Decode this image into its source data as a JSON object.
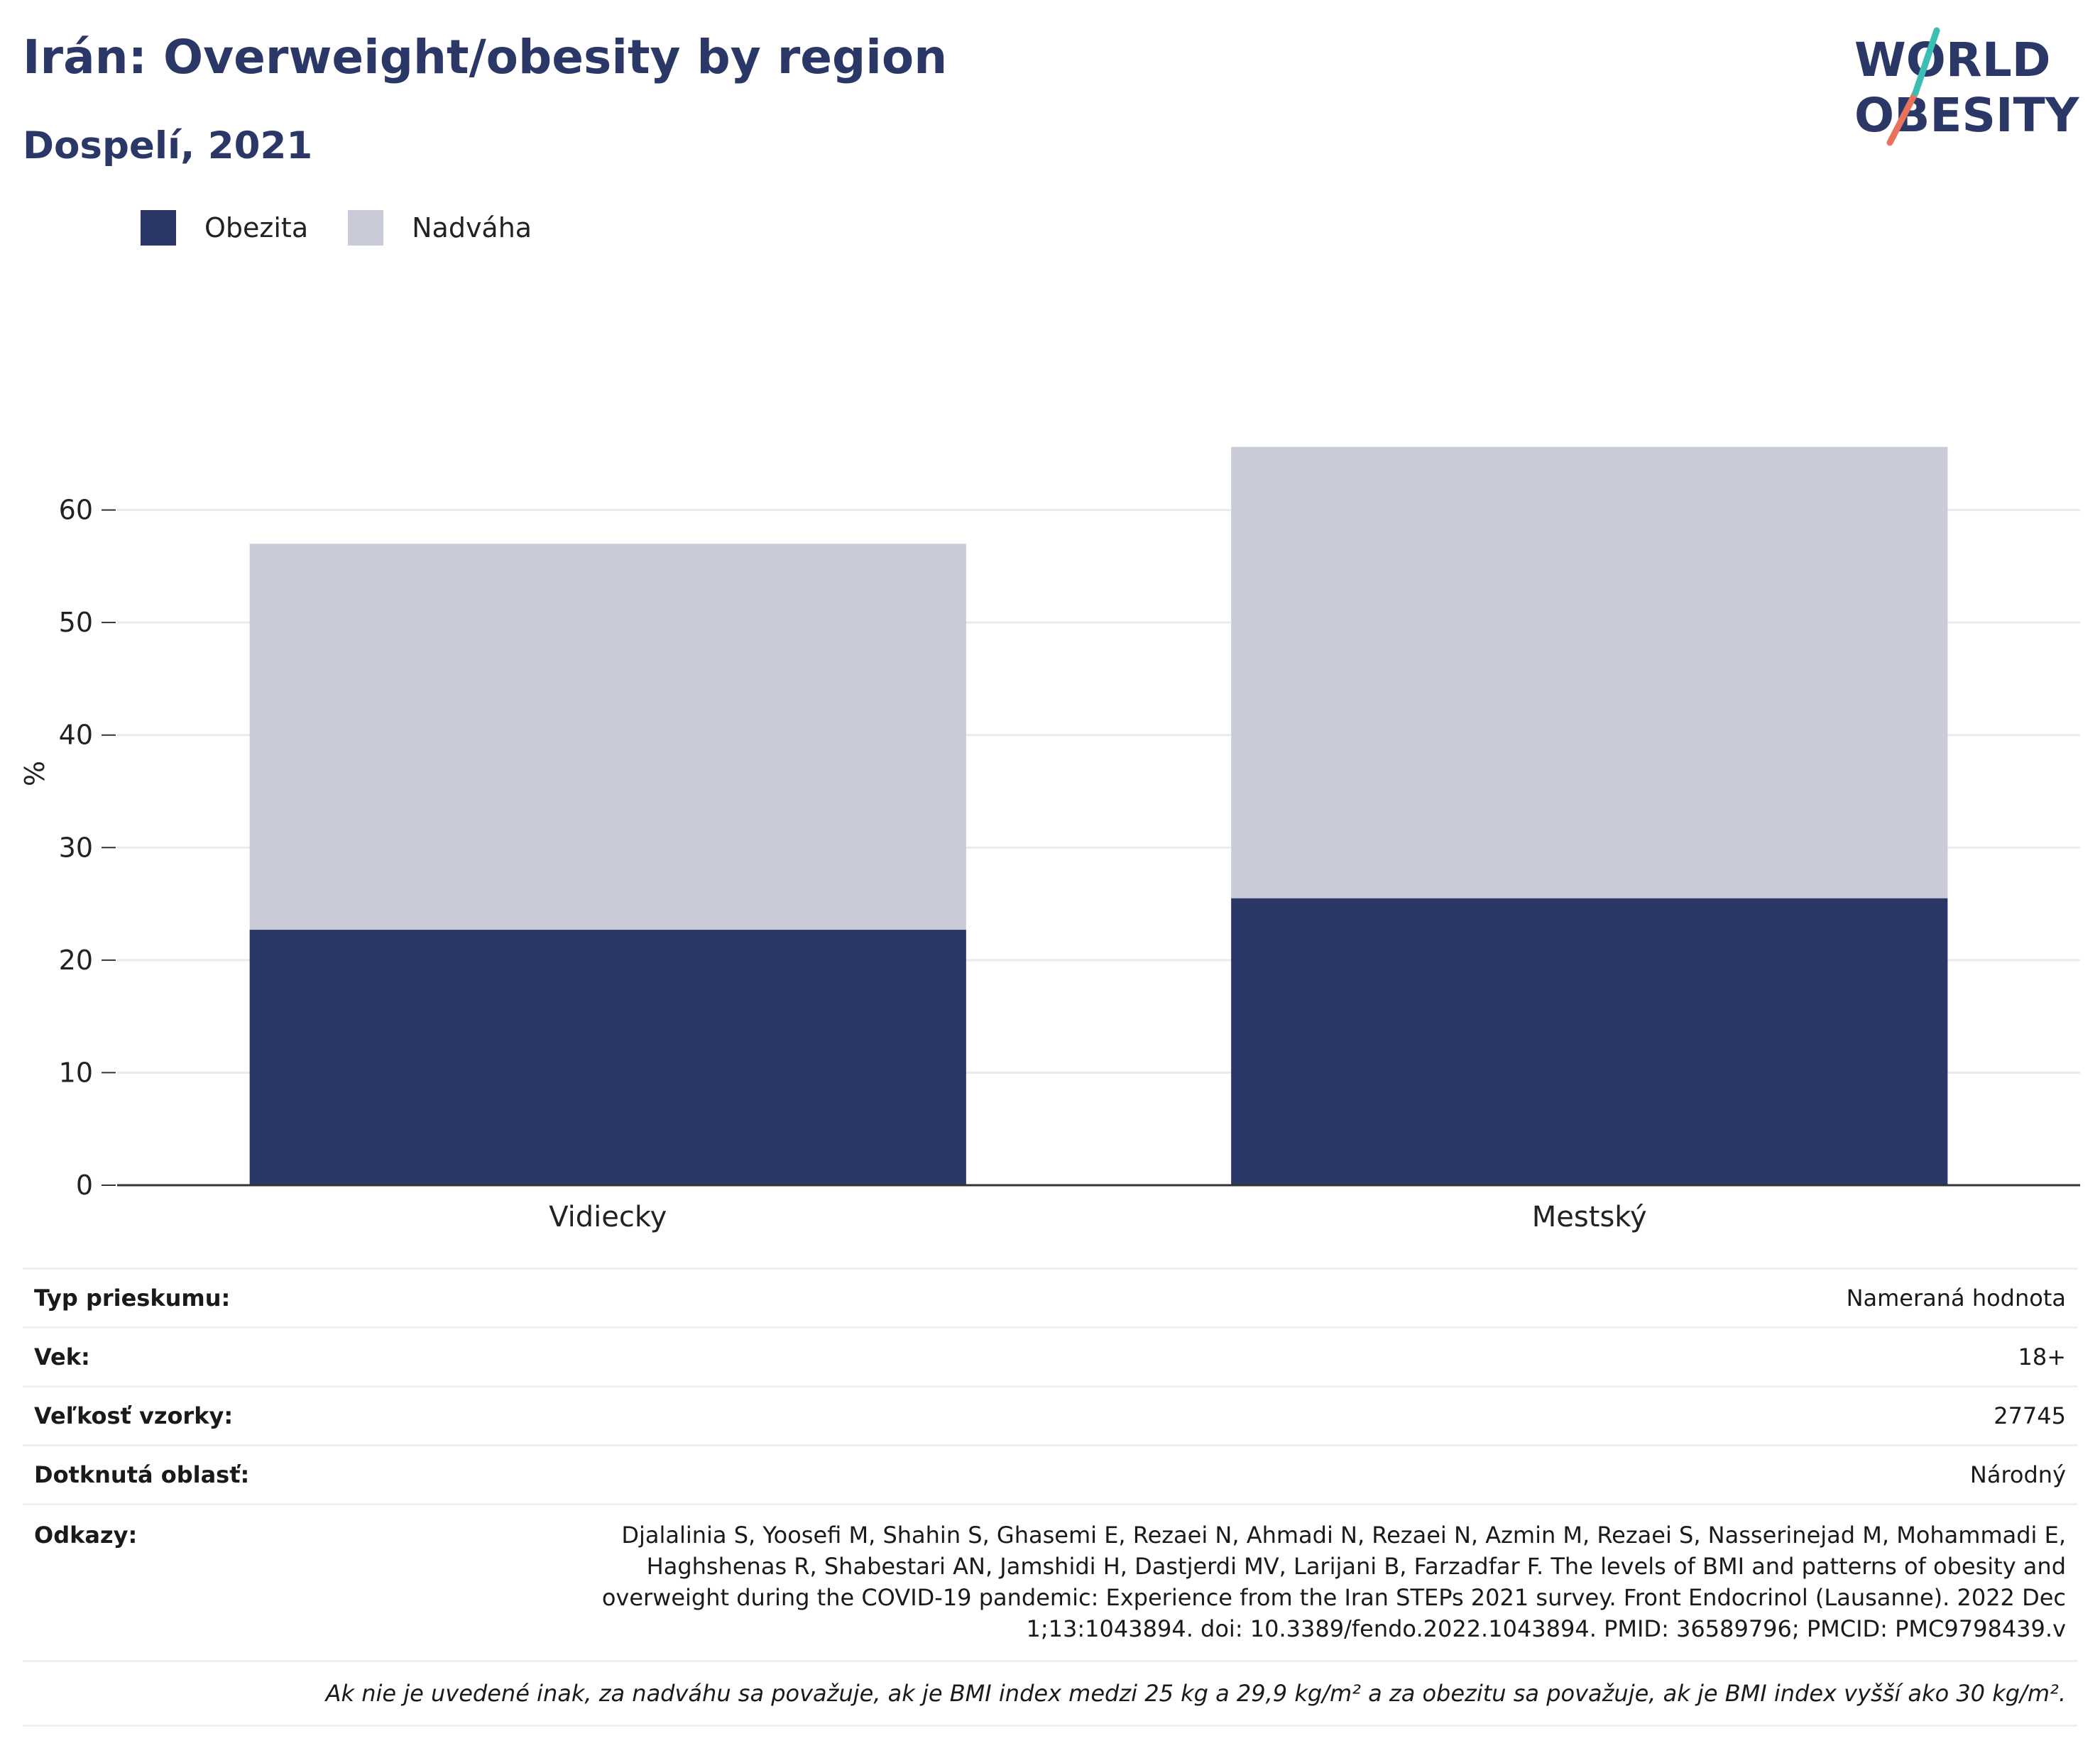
{
  "header": {
    "title": "Irán: Overweight/obesity by region",
    "subtitle": "Dospelí, 2021",
    "logo_line1": "WORLD",
    "logo_line2": "OBESITY"
  },
  "legend": [
    {
      "label": "Obezita",
      "color": "#2b3766"
    },
    {
      "label": "Nadváha",
      "color": "#c9ccd8"
    }
  ],
  "chart_data": {
    "type": "bar",
    "stacked": true,
    "categories": [
      "Vidiecky",
      "Mestský"
    ],
    "series": [
      {
        "name": "Obezita",
        "color": "#2b3766",
        "values": [
          22.7,
          25.5
        ]
      },
      {
        "name": "Nadváha",
        "color": "#c9ccd8",
        "values": [
          34.3,
          40.1
        ]
      }
    ],
    "ylabel": "%",
    "ylim": [
      0,
      70
    ],
    "yticks": [
      0,
      10,
      20,
      30,
      40,
      50,
      60
    ],
    "grid": true,
    "legend_position": "top-left"
  },
  "info": {
    "rows": [
      {
        "key": "Typ prieskumu:",
        "value": "Nameraná hodnota"
      },
      {
        "key": "Vek:",
        "value": "18+"
      },
      {
        "key": "Veľkosť vzorky:",
        "value": "27745"
      },
      {
        "key": "Dotknutá oblasť:",
        "value": "Národný"
      }
    ],
    "references_key": "Odkazy:",
    "references_lines": [
      "Djalalinia S, Yoosefi M, Shahin S, Ghasemi E, Rezaei N, Ahmadi N, Rezaei N, Azmin M, Rezaei S, Nasserinejad M, Mohammadi E,",
      "Haghshenas R, Shabestari AN, Jamshidi H, Dastjerdi MV, Larijani B, Farzadfar F. The levels of BMI and patterns of obesity and",
      "overweight during the COVID-19 pandemic: Experience from the Iran STEPs 2021 survey. Front Endocrinol (Lausanne). 2022 Dec",
      "1;13:1043894. doi: 10.3389/fendo.2022.1043894. PMID: 36589796; PMCID: PMC9798439.v"
    ],
    "note": "Ak nie je uvedené inak, za nadváhu sa považuje, ak je BMI index medzi 25 kg a 29,9 kg/m² a za obezitu sa považuje, ak je BMI index vyšší ako 30 kg/m²."
  }
}
